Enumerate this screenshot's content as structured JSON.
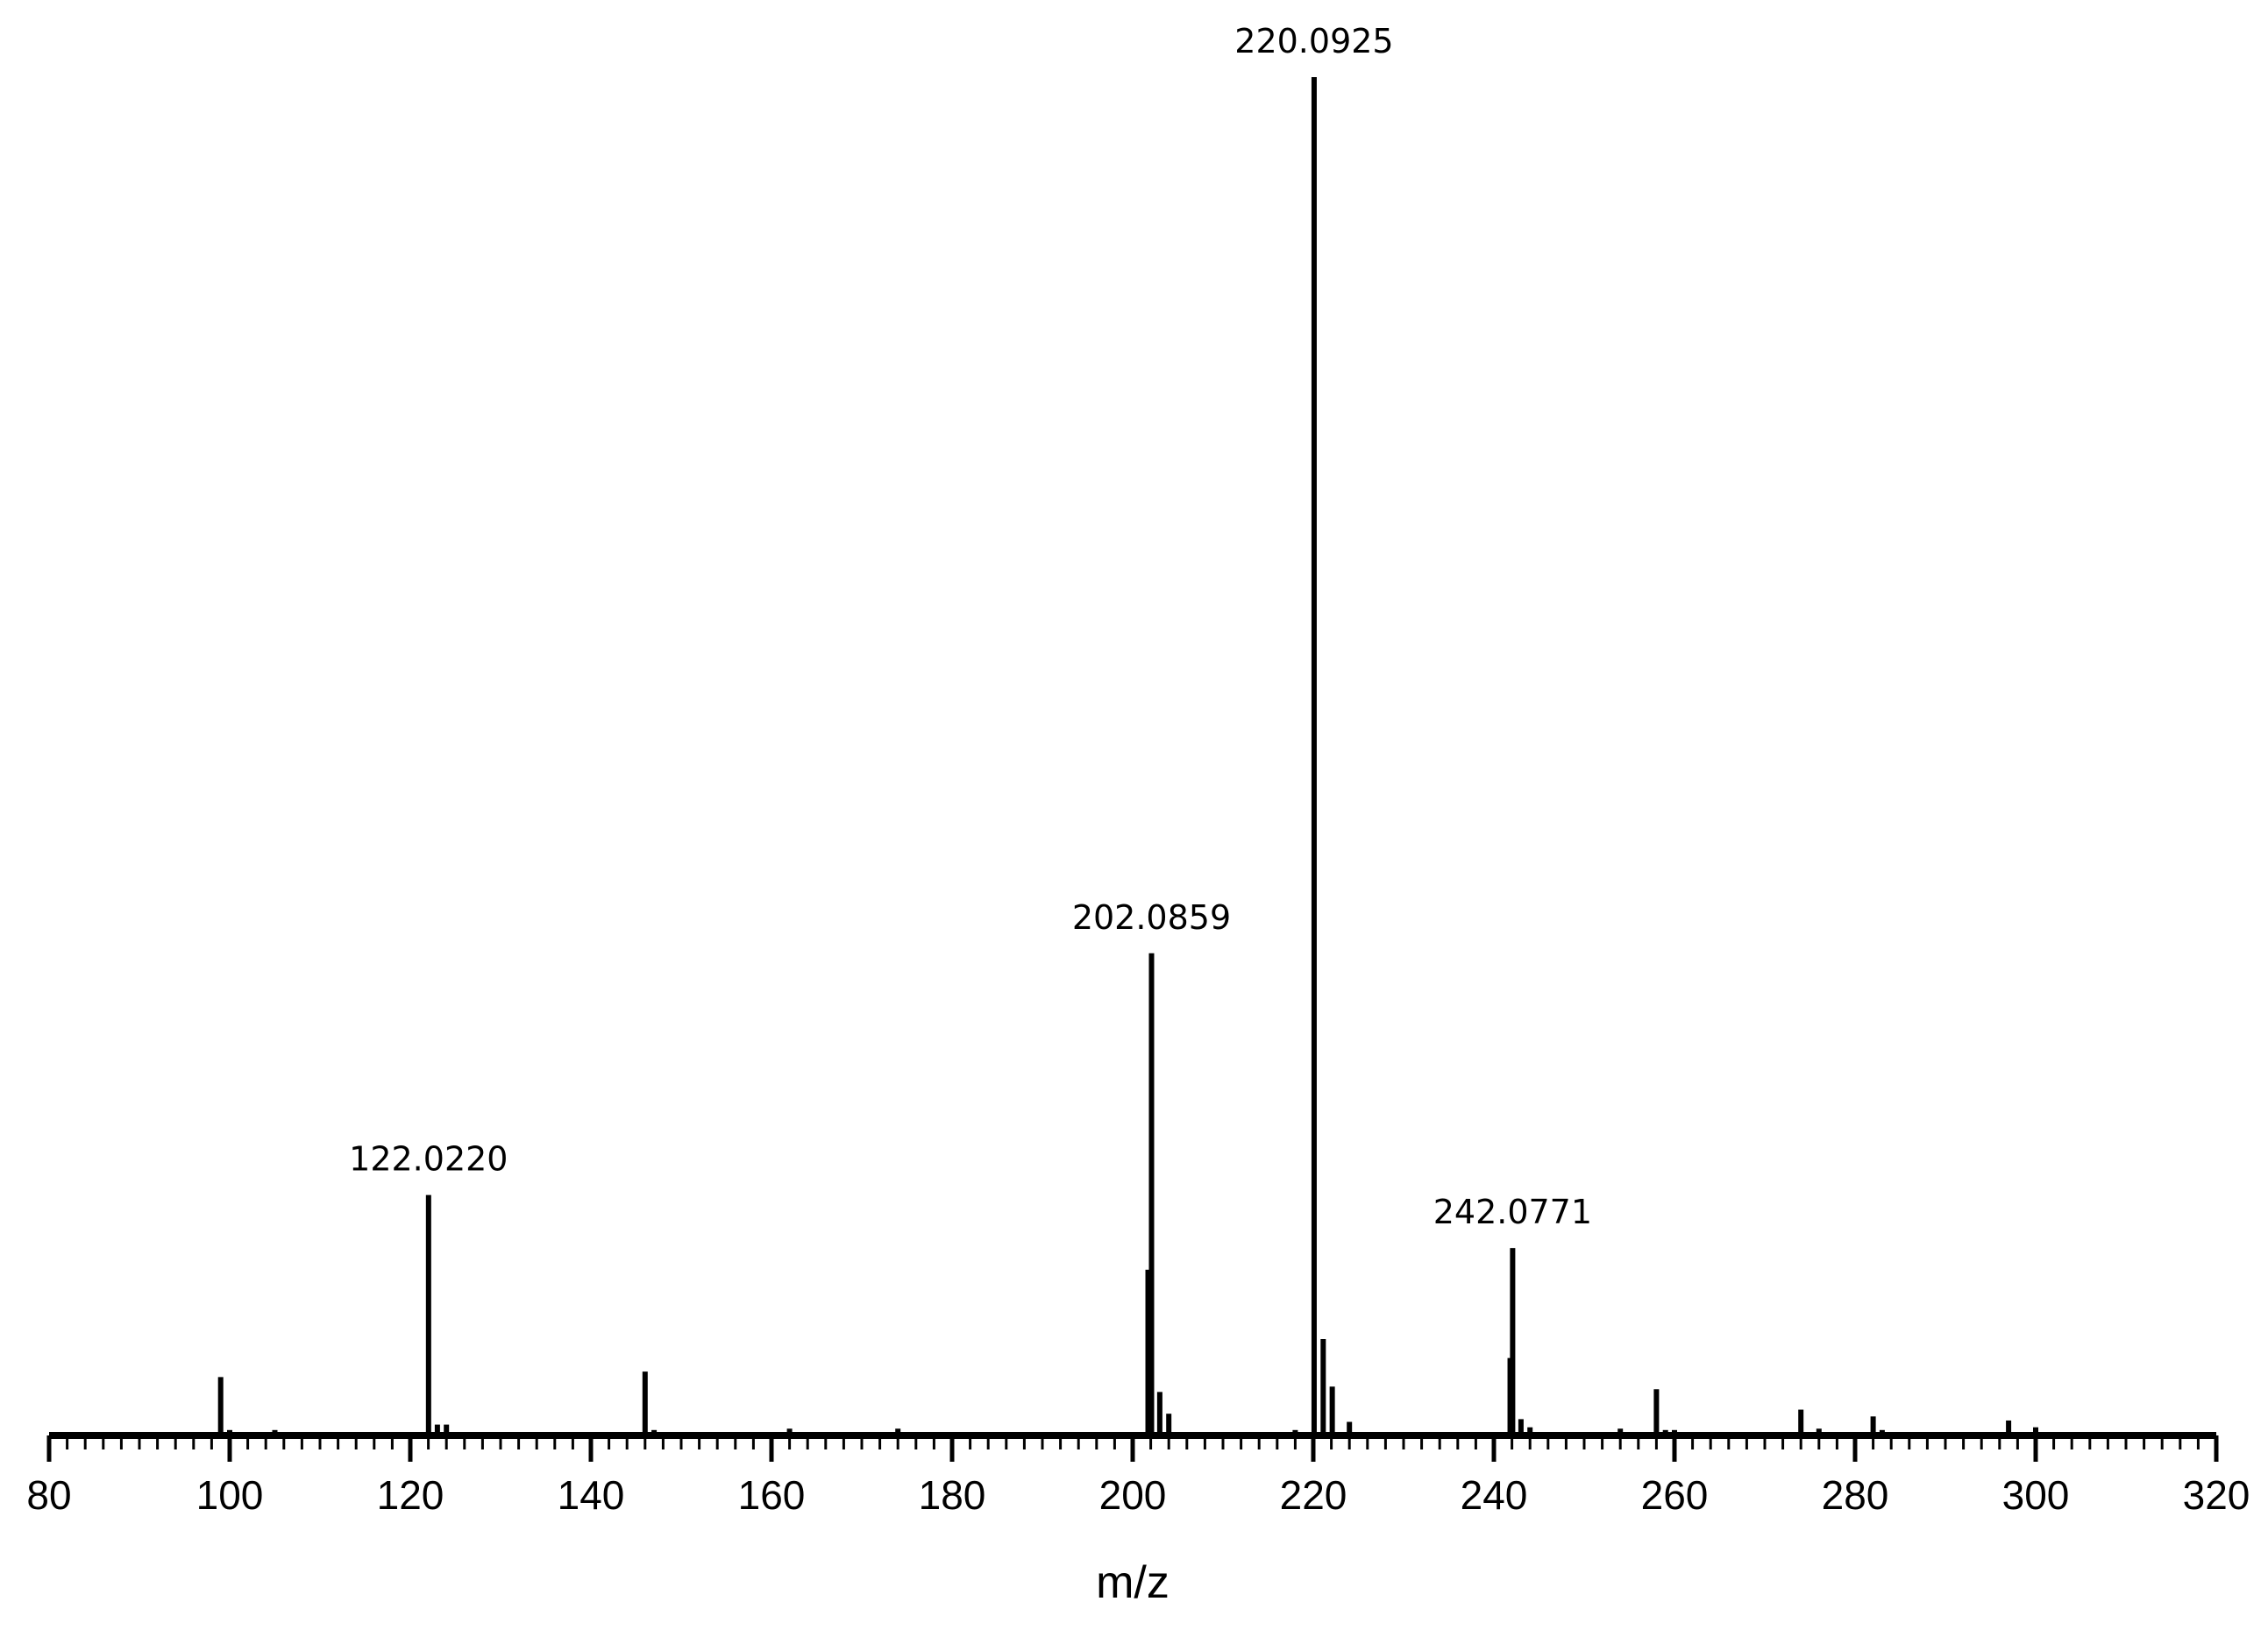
{
  "chart_data": {
    "type": "bar",
    "title": "",
    "xlabel": "m/z",
    "ylabel": "",
    "xlim": [
      80,
      320
    ],
    "ylim": [
      0,
      100
    ],
    "x_ticks": [
      "80",
      "100",
      "120",
      "140",
      "160",
      "180",
      "200",
      "220",
      "240",
      "260",
      "280",
      "300",
      "320"
    ],
    "grid": false,
    "bar_color": "#000000",
    "series": [
      {
        "peaks": [
          {
            "mz": 99.0,
            "intensity": 4.3
          },
          {
            "mz": 100.0,
            "intensity": 0.4
          },
          {
            "mz": 105.0,
            "intensity": 0.4
          },
          {
            "mz": 122.022,
            "intensity": 17.7
          },
          {
            "mz": 123.0,
            "intensity": 0.8
          },
          {
            "mz": 124.0,
            "intensity": 0.8
          },
          {
            "mz": 146.0,
            "intensity": 4.7
          },
          {
            "mz": 147.0,
            "intensity": 0.4
          },
          {
            "mz": 162.0,
            "intensity": 0.5
          },
          {
            "mz": 174.0,
            "intensity": 0.5
          },
          {
            "mz": 201.7,
            "intensity": 12.2
          },
          {
            "mz": 202.0859,
            "intensity": 35.5
          },
          {
            "mz": 203.0,
            "intensity": 3.2
          },
          {
            "mz": 204.0,
            "intensity": 1.6
          },
          {
            "mz": 218.0,
            "intensity": 0.4
          },
          {
            "mz": 220.0925,
            "intensity": 100.0
          },
          {
            "mz": 221.1,
            "intensity": 7.1
          },
          {
            "mz": 222.1,
            "intensity": 3.6
          },
          {
            "mz": 224.0,
            "intensity": 1.0
          },
          {
            "mz": 241.8,
            "intensity": 5.7
          },
          {
            "mz": 242.0771,
            "intensity": 13.8
          },
          {
            "mz": 243.0,
            "intensity": 1.2
          },
          {
            "mz": 244.0,
            "intensity": 0.6
          },
          {
            "mz": 254.0,
            "intensity": 0.5
          },
          {
            "mz": 258.0,
            "intensity": 3.4
          },
          {
            "mz": 259.0,
            "intensity": 0.4
          },
          {
            "mz": 260.0,
            "intensity": 0.4
          },
          {
            "mz": 274.0,
            "intensity": 1.9
          },
          {
            "mz": 276.0,
            "intensity": 0.5
          },
          {
            "mz": 282.0,
            "intensity": 1.4
          },
          {
            "mz": 283.0,
            "intensity": 0.4
          },
          {
            "mz": 297.0,
            "intensity": 1.1
          },
          {
            "mz": 300.0,
            "intensity": 0.6
          }
        ]
      }
    ],
    "annotations": [
      {
        "text": "122.0220",
        "mz": 122.022,
        "intensity": 17.7
      },
      {
        "text": "202.0859",
        "mz": 202.0859,
        "intensity": 35.5
      },
      {
        "text": "220.0925",
        "mz": 220.0925,
        "intensity": 100.0
      },
      {
        "text": "242.0771",
        "mz": 242.0771,
        "intensity": 13.8
      }
    ]
  }
}
